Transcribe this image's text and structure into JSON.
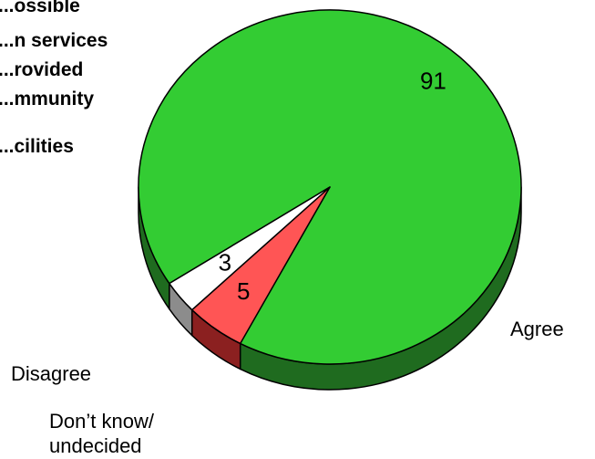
{
  "chart_data": {
    "type": "pie",
    "title_lines": [
      "...ossible",
      "...n services",
      "...rovided",
      "...mmunity",
      "...cilities"
    ],
    "categories": [
      "Agree",
      "Disagree",
      "Don’t know/ undecided"
    ],
    "label_lines": [
      [
        "Agree"
      ],
      [
        "Disagree"
      ],
      [
        "Don’t know/",
        "undecided"
      ]
    ],
    "values": [
      91,
      5,
      3
    ],
    "value_labels": [
      "91",
      "5",
      "3"
    ],
    "colors": [
      "#33cc33",
      "#ff5555",
      "#ffffff"
    ],
    "side_colors": [
      "#1f6b1f",
      "#8b2020",
      "#8c8c8c"
    ],
    "style": "3d-tilted",
    "legend": "none"
  }
}
